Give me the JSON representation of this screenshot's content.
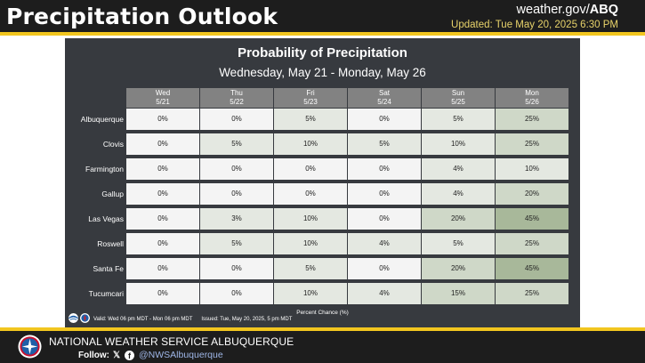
{
  "header": {
    "title": "Precipitation Outlook",
    "site_prefix": "weather.gov/",
    "site_office": "ABQ",
    "updated": "Updated: Tue May 20, 2025 6:30 PM"
  },
  "panel": {
    "title": "Probability of Precipitation",
    "subtitle": "Wednesday, May 21 - Monday, May 26",
    "columns": [
      {
        "day": "Wed",
        "date": "5/21"
      },
      {
        "day": "Thu",
        "date": "5/22"
      },
      {
        "day": "Fri",
        "date": "5/23"
      },
      {
        "day": "Sat",
        "date": "5/24"
      },
      {
        "day": "Sun",
        "date": "5/25"
      },
      {
        "day": "Mon",
        "date": "5/26"
      }
    ],
    "rows": [
      {
        "city": "Albuquerque",
        "values": [
          "0%",
          "0%",
          "5%",
          "0%",
          "5%",
          "25%"
        ]
      },
      {
        "city": "Clovis",
        "values": [
          "0%",
          "5%",
          "10%",
          "5%",
          "10%",
          "25%"
        ]
      },
      {
        "city": "Farmington",
        "values": [
          "0%",
          "0%",
          "0%",
          "0%",
          "4%",
          "10%"
        ]
      },
      {
        "city": "Gallup",
        "values": [
          "0%",
          "0%",
          "0%",
          "0%",
          "4%",
          "20%"
        ]
      },
      {
        "city": "Las Vegas",
        "values": [
          "0%",
          "3%",
          "10%",
          "0%",
          "20%",
          "45%"
        ]
      },
      {
        "city": "Roswell",
        "values": [
          "0%",
          "5%",
          "10%",
          "4%",
          "5%",
          "25%"
        ]
      },
      {
        "city": "Santa Fe",
        "values": [
          "0%",
          "0%",
          "5%",
          "0%",
          "20%",
          "45%"
        ]
      },
      {
        "city": "Tucumcari",
        "values": [
          "0%",
          "0%",
          "10%",
          "4%",
          "15%",
          "25%"
        ]
      }
    ],
    "units_note": "Percent Chance (%)",
    "valid": "Valid: Wed 06 pm MDT - Mon 06 pm MDT",
    "issued": "Issued: Tue, May 20, 2025, 5 pm MDT",
    "colors": {
      "zero": "#f4f4f4",
      "low": "#e4e8e1",
      "mid": "#cfd8c8",
      "high": "#a8b89a"
    }
  },
  "footer": {
    "office": "NATIONAL WEATHER SERVICE ALBUQUERQUE",
    "follow_label": "Follow:",
    "handle": "@NWSAlbuquerque"
  },
  "icons": [
    "x-icon",
    "facebook-icon",
    "nws-logo",
    "noaa-logo"
  ]
}
